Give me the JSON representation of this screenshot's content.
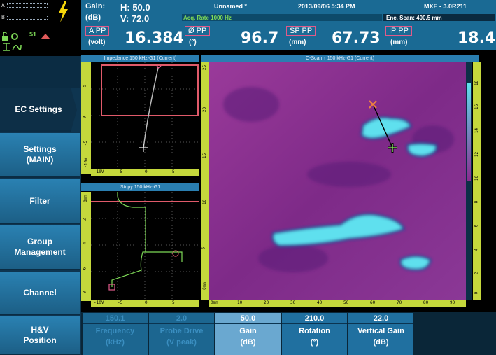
{
  "header": {
    "gain_label": "Gain:",
    "gain_unit": "(dB)",
    "gain_h": "H: 50.0",
    "gain_v": "V: 72.0",
    "file_name": "Unnamed *",
    "datetime": "2013/09/06 5:34 PM",
    "device": "MXE - 3.0R211",
    "acq_rate": "Acq. Rate 1000  Hz",
    "enc_scan": "Enc. Scan:  400.5 mm",
    "readings": [
      {
        "label": "A PP",
        "unit": "(volt)",
        "value": "16.384"
      },
      {
        "label": "Ø PP",
        "unit": "(°)",
        "value": "96.7"
      },
      {
        "label": "SP PP",
        "unit": "(mm)",
        "value": "67.73"
      },
      {
        "label": "IP PP",
        "unit": "(mm)",
        "value": "18.4"
      }
    ]
  },
  "status": {
    "line_a": "A",
    "line_b": "B",
    "num": "51"
  },
  "sidebar": {
    "items": [
      {
        "label": "EC Settings",
        "active": true
      },
      {
        "label": "Settings (MAIN)",
        "active": false
      },
      {
        "label": "Filter",
        "active": false
      },
      {
        "label": "Group Management",
        "active": false
      },
      {
        "label": "Channel",
        "active": false
      },
      {
        "label": "H&V Position",
        "active": false
      }
    ]
  },
  "panels": {
    "impedance_title": "Impedance 150 kHz-G1 (Current)",
    "strip_title": "Stripy 150 kHz-G1",
    "cscan_title": "C-Scan ↑ 150 kHz-G1 (Current)"
  },
  "axes": {
    "imp_v_ticks": [
      "5",
      "0",
      "-5",
      "-10V"
    ],
    "imp_h_ticks": [
      "-10V",
      "-5",
      "0",
      "5"
    ],
    "strip_v_ticks": [
      "0mm",
      "2",
      "4",
      "6",
      "8"
    ],
    "strip_h_ticks": [
      "-10V",
      "-5",
      "0",
      "5"
    ],
    "cscan_left_ticks": [
      "25",
      "20",
      "15",
      "10",
      "5",
      "0mm"
    ],
    "cscan_right_ticks": [
      "18",
      "16",
      "14",
      "12",
      "10",
      "8",
      "6",
      "4",
      "2",
      "0"
    ],
    "cscan_bottom_ticks": [
      "0mm",
      "10",
      "20",
      "30",
      "40",
      "50",
      "60",
      "70",
      "80",
      "90"
    ]
  },
  "params": [
    {
      "value": "150.1",
      "name": "Frequency",
      "unit": "(kHz)",
      "state": "dim"
    },
    {
      "value": "2.0",
      "name": "Probe Drive",
      "unit": "(V peak)",
      "state": "dim"
    },
    {
      "value": "50.0",
      "name": "Gain",
      "unit": "(dB)",
      "state": "sel"
    },
    {
      "value": "210.0",
      "name": "Rotation",
      "unit": "(°)",
      "state": "normal"
    },
    {
      "value": "22.0",
      "name": "Vertical Gain",
      "unit": "(dB)",
      "state": "normal"
    }
  ],
  "colors": {
    "header_bg": "#1a6a94",
    "accent_pink": "#e05a8a",
    "ruler": "#c5d83c",
    "cscan_bg": "#8a2a8e",
    "defect": "#5fe0ee"
  }
}
